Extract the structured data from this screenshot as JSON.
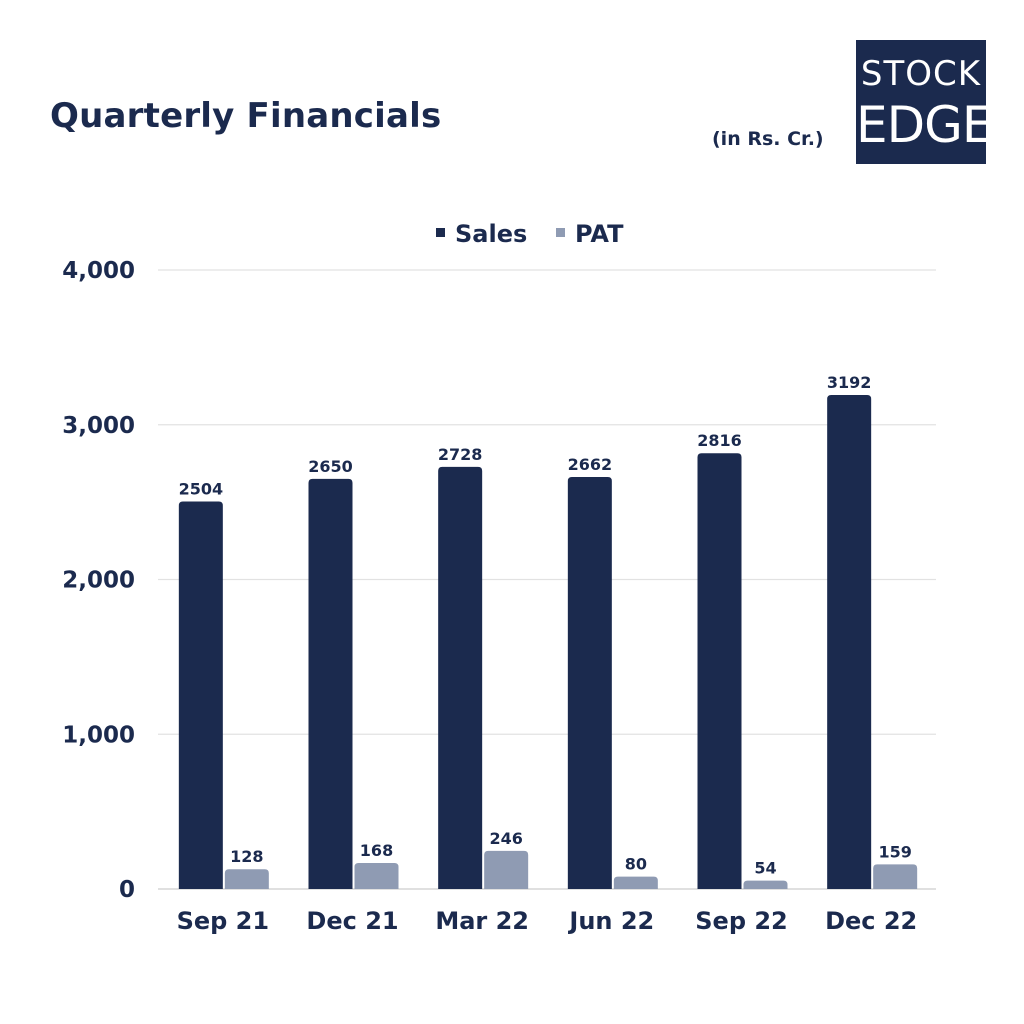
{
  "header": {
    "title": "Quarterly Financials",
    "unit": "(in Rs. Cr.)",
    "logo_line1": "STOCK",
    "logo_line2": "EDGE"
  },
  "colors": {
    "sales": "#1b2a4e",
    "pat": "#8f9bb3",
    "text": "#1b2a4e",
    "grid": "#e2e2e2"
  },
  "chart_data": {
    "type": "bar",
    "title": "Quarterly Financials",
    "xlabel": "",
    "ylabel": "",
    "ylim": [
      0,
      4000
    ],
    "yticks": [
      0,
      1000,
      2000,
      3000,
      4000
    ],
    "ytick_labels": [
      "0",
      "1,000",
      "2,000",
      "3,000",
      "4,000"
    ],
    "grid": true,
    "legend_position": "top-center",
    "categories": [
      "Sep 21",
      "Dec 21",
      "Mar 22",
      "Jun 22",
      "Sep 22",
      "Dec 22"
    ],
    "series": [
      {
        "name": "Sales",
        "values": [
          2504,
          2650,
          2728,
          2662,
          2816,
          3192
        ]
      },
      {
        "name": "PAT",
        "values": [
          128,
          168,
          246,
          80,
          54,
          159
        ]
      }
    ]
  }
}
